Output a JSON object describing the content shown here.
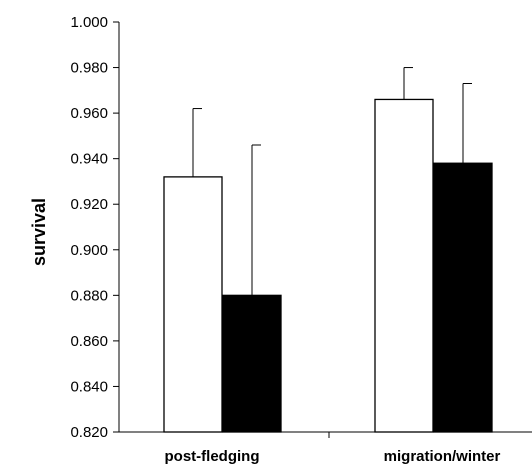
{
  "chart_data": {
    "type": "bar",
    "title": "",
    "xlabel": "",
    "ylabel": "survival",
    "ylim": [
      0.82,
      1.0
    ],
    "yticks": [
      "0.820",
      "0.840",
      "0.860",
      "0.880",
      "0.900",
      "0.920",
      "0.940",
      "0.960",
      "0.980",
      "1.000"
    ],
    "categories": [
      "post-fledging",
      "migration/winter"
    ],
    "series": [
      {
        "values": [
          0.932,
          0.966
        ],
        "errors_upper": [
          0.03,
          0.014
        ],
        "color": "#ffffff"
      },
      {
        "values": [
          0.88,
          0.938
        ],
        "errors_upper": [
          0.066,
          0.035
        ],
        "color": "#000000"
      }
    ],
    "grid": false,
    "legend": "none"
  }
}
